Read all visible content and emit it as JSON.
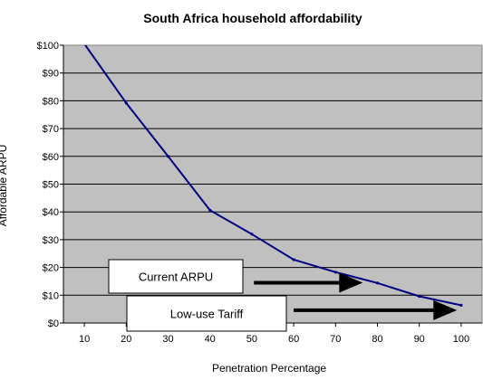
{
  "chart_data": {
    "type": "line",
    "title": "South Africa household affordability",
    "xlabel": "Penetration Percentage",
    "ylabel": "Affordable ARPU",
    "x_ticks": [
      "10",
      "20",
      "30",
      "40",
      "50",
      "60",
      "70",
      "80",
      "90",
      "100"
    ],
    "y_ticks": [
      "$0",
      "$10",
      "$20",
      "$30",
      "$40",
      "$50",
      "$60",
      "$70",
      "$80",
      "$90",
      "$100"
    ],
    "xlim": [
      5,
      105
    ],
    "ylim": [
      0,
      100
    ],
    "grid": true,
    "plot_background": "#c0c0c0",
    "series": [
      {
        "color": "#000080",
        "points": [
          [
            10,
            100.5
          ],
          [
            20,
            79.2
          ],
          [
            30,
            60
          ],
          [
            40,
            40.6
          ],
          [
            50,
            32
          ],
          [
            60,
            22.8
          ],
          [
            70,
            18.3
          ],
          [
            80,
            14.4
          ],
          [
            90,
            9.6
          ],
          [
            100,
            6.4
          ]
        ]
      }
    ],
    "annotations": [
      {
        "text": "Current ARPU",
        "arrow_y": 14.5,
        "arrow_from_x": 50.5,
        "arrow_to_x": 76.5
      },
      {
        "text": "Low-use Tariff",
        "arrow_y": 4.6,
        "arrow_from_x": 60,
        "arrow_to_x": 99
      }
    ]
  }
}
